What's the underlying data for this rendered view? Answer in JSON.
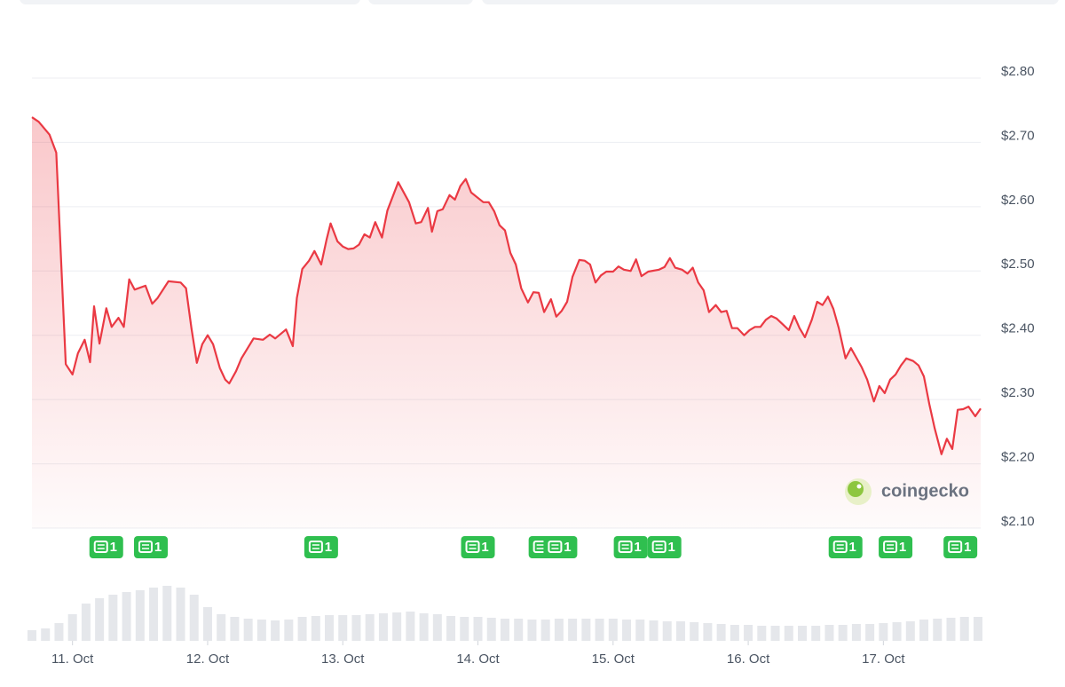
{
  "chart_data": {
    "type": "line",
    "color": "#ea3943",
    "x": [
      10.7,
      10.75,
      10.83,
      10.88,
      10.95,
      11.0,
      11.04,
      11.09,
      11.13,
      11.16,
      11.2,
      11.25,
      11.29,
      11.34,
      11.38,
      11.42,
      11.46,
      11.54,
      11.59,
      11.63,
      11.71,
      11.8,
      11.84,
      11.88,
      11.92,
      11.96,
      12.0,
      12.04,
      12.09,
      12.13,
      12.16,
      12.21,
      12.25,
      12.34,
      12.41,
      12.46,
      12.5,
      12.58,
      12.63,
      12.66,
      12.7,
      12.75,
      12.79,
      12.84,
      12.88,
      12.91,
      12.96,
      13.0,
      13.04,
      13.08,
      13.12,
      13.16,
      13.2,
      13.24,
      13.29,
      13.33,
      13.41,
      13.49,
      13.54,
      13.58,
      13.63,
      13.66,
      13.7,
      13.74,
      13.79,
      13.83,
      13.87,
      13.91,
      13.95,
      14.04,
      14.08,
      14.12,
      14.16,
      14.2,
      14.24,
      14.28,
      14.32,
      14.37,
      14.41,
      14.45,
      14.49,
      14.54,
      14.58,
      14.62,
      14.66,
      14.7,
      14.75,
      14.79,
      14.83,
      14.87,
      14.91,
      14.95,
      15.0,
      15.04,
      15.08,
      15.13,
      15.17,
      15.21,
      15.26,
      15.34,
      15.38,
      15.42,
      15.46,
      15.51,
      15.55,
      15.59,
      15.63,
      15.67,
      15.71,
      15.76,
      15.8,
      15.84,
      15.88,
      15.92,
      15.97,
      16.01,
      16.05,
      16.09,
      16.13,
      16.17,
      16.21,
      16.26,
      16.3,
      16.34,
      16.38,
      16.42,
      16.47,
      16.51,
      16.55,
      16.59,
      16.63,
      16.67,
      16.72,
      16.76,
      16.8,
      16.84,
      16.88,
      16.93,
      16.97,
      17.01,
      17.05,
      17.09,
      17.13,
      17.17,
      17.22,
      17.26,
      17.3,
      17.34,
      17.38,
      17.43,
      17.47,
      17.51,
      17.55,
      17.59,
      17.63,
      17.68,
      17.72
    ],
    "values": [
      2.739,
      2.732,
      2.712,
      2.684,
      2.355,
      2.339,
      2.372,
      2.393,
      2.358,
      2.445,
      2.387,
      2.442,
      2.413,
      2.427,
      2.413,
      2.487,
      2.471,
      2.477,
      2.449,
      2.458,
      2.484,
      2.482,
      2.473,
      2.411,
      2.357,
      2.386,
      2.4,
      2.386,
      2.349,
      2.331,
      2.325,
      2.344,
      2.364,
      2.395,
      2.393,
      2.401,
      2.395,
      2.409,
      2.383,
      2.458,
      2.503,
      2.516,
      2.531,
      2.51,
      2.549,
      2.574,
      2.546,
      2.538,
      2.534,
      2.535,
      2.541,
      2.557,
      2.552,
      2.576,
      2.552,
      2.594,
      2.638,
      2.607,
      2.574,
      2.576,
      2.598,
      2.561,
      2.593,
      2.596,
      2.618,
      2.611,
      2.632,
      2.643,
      2.622,
      2.607,
      2.607,
      2.593,
      2.571,
      2.563,
      2.528,
      2.51,
      2.473,
      2.451,
      2.467,
      2.466,
      2.436,
      2.456,
      2.429,
      2.438,
      2.452,
      2.491,
      2.517,
      2.516,
      2.51,
      2.482,
      2.493,
      2.499,
      2.499,
      2.507,
      2.502,
      2.5,
      2.518,
      2.492,
      2.499,
      2.502,
      2.506,
      2.52,
      2.505,
      2.502,
      2.496,
      2.505,
      2.482,
      2.47,
      2.436,
      2.447,
      2.436,
      2.438,
      2.411,
      2.411,
      2.4,
      2.408,
      2.413,
      2.413,
      2.424,
      2.43,
      2.426,
      2.416,
      2.408,
      2.43,
      2.411,
      2.397,
      2.424,
      2.452,
      2.447,
      2.46,
      2.441,
      2.411,
      2.364,
      2.38,
      2.365,
      2.35,
      2.331,
      2.297,
      2.321,
      2.31,
      2.331,
      2.339,
      2.353,
      2.364,
      2.36,
      2.353,
      2.336,
      2.293,
      2.255,
      2.215,
      2.239,
      2.223,
      2.284,
      2.285,
      2.289,
      2.274,
      2.286
    ],
    "xlim": [
      10.7,
      17.72
    ],
    "xticks": [
      {
        "value": 11,
        "label": "11. Oct"
      },
      {
        "value": 12,
        "label": "12. Oct"
      },
      {
        "value": 13,
        "label": "13. Oct"
      },
      {
        "value": 14,
        "label": "14. Oct"
      },
      {
        "value": 15,
        "label": "15. Oct"
      },
      {
        "value": 16,
        "label": "16. Oct"
      },
      {
        "value": 17,
        "label": "17. Oct"
      }
    ],
    "ylim": [
      2.1,
      2.86
    ],
    "yticks": [
      {
        "value": 2.1,
        "label": "$2.10"
      },
      {
        "value": 2.2,
        "label": "$2.20"
      },
      {
        "value": 2.3,
        "label": "$2.30"
      },
      {
        "value": 2.4,
        "label": "$2.40"
      },
      {
        "value": 2.5,
        "label": "$2.50"
      },
      {
        "value": 2.6,
        "label": "$2.60"
      },
      {
        "value": 2.7,
        "label": "$2.70"
      },
      {
        "value": 2.8,
        "label": "$2.80"
      }
    ],
    "grid": true,
    "volume": {
      "color": "#e5e7eb",
      "x": [
        10.7,
        10.8,
        10.9,
        11.0,
        11.1,
        11.2,
        11.3,
        11.4,
        11.5,
        11.6,
        11.7,
        11.8,
        11.9,
        12.0,
        12.1,
        12.2,
        12.3,
        12.4,
        12.5,
        12.6,
        12.7,
        12.8,
        12.9,
        13.0,
        13.1,
        13.2,
        13.3,
        13.4,
        13.5,
        13.6,
        13.7,
        13.8,
        13.9,
        14.0,
        14.1,
        14.2,
        14.3,
        14.4,
        14.5,
        14.6,
        14.7,
        14.8,
        14.9,
        15.0,
        15.1,
        15.2,
        15.3,
        15.4,
        15.5,
        15.6,
        15.7,
        15.8,
        15.9,
        16.0,
        16.1,
        16.2,
        16.3,
        16.4,
        16.5,
        16.6,
        16.7,
        16.8,
        16.9,
        17.0,
        17.1,
        17.2,
        17.3,
        17.4,
        17.5,
        17.6,
        17.7
      ],
      "values": [
        12,
        14,
        20,
        30,
        42,
        48,
        52,
        55,
        57,
        60,
        62,
        60,
        52,
        38,
        30,
        27,
        25,
        24,
        23,
        24,
        27,
        28,
        29,
        29,
        29,
        30,
        31,
        32,
        33,
        31,
        30,
        28,
        27,
        27,
        26,
        25,
        25,
        24,
        24,
        25,
        25,
        25,
        25,
        25,
        24,
        24,
        23,
        22,
        22,
        21,
        20,
        19,
        18,
        18,
        17,
        17,
        17,
        17,
        17,
        18,
        18,
        19,
        19,
        20,
        21,
        22,
        24,
        25,
        26,
        27,
        27
      ]
    },
    "events": [
      {
        "x": 11.25,
        "count": 1
      },
      {
        "x": 11.58,
        "count": 1
      },
      {
        "x": 12.84,
        "count": 1
      },
      {
        "x": 14.0,
        "count": 1
      },
      {
        "x": 14.5,
        "count": 1
      },
      {
        "x": 14.61,
        "count": 1
      },
      {
        "x": 15.13,
        "count": 1
      },
      {
        "x": 15.38,
        "count": 1
      },
      {
        "x": 16.72,
        "count": 1
      },
      {
        "x": 17.09,
        "count": 1
      },
      {
        "x": 17.57,
        "count": 1
      }
    ],
    "event_color": "#2fbf4f",
    "watermark": "coingecko"
  }
}
